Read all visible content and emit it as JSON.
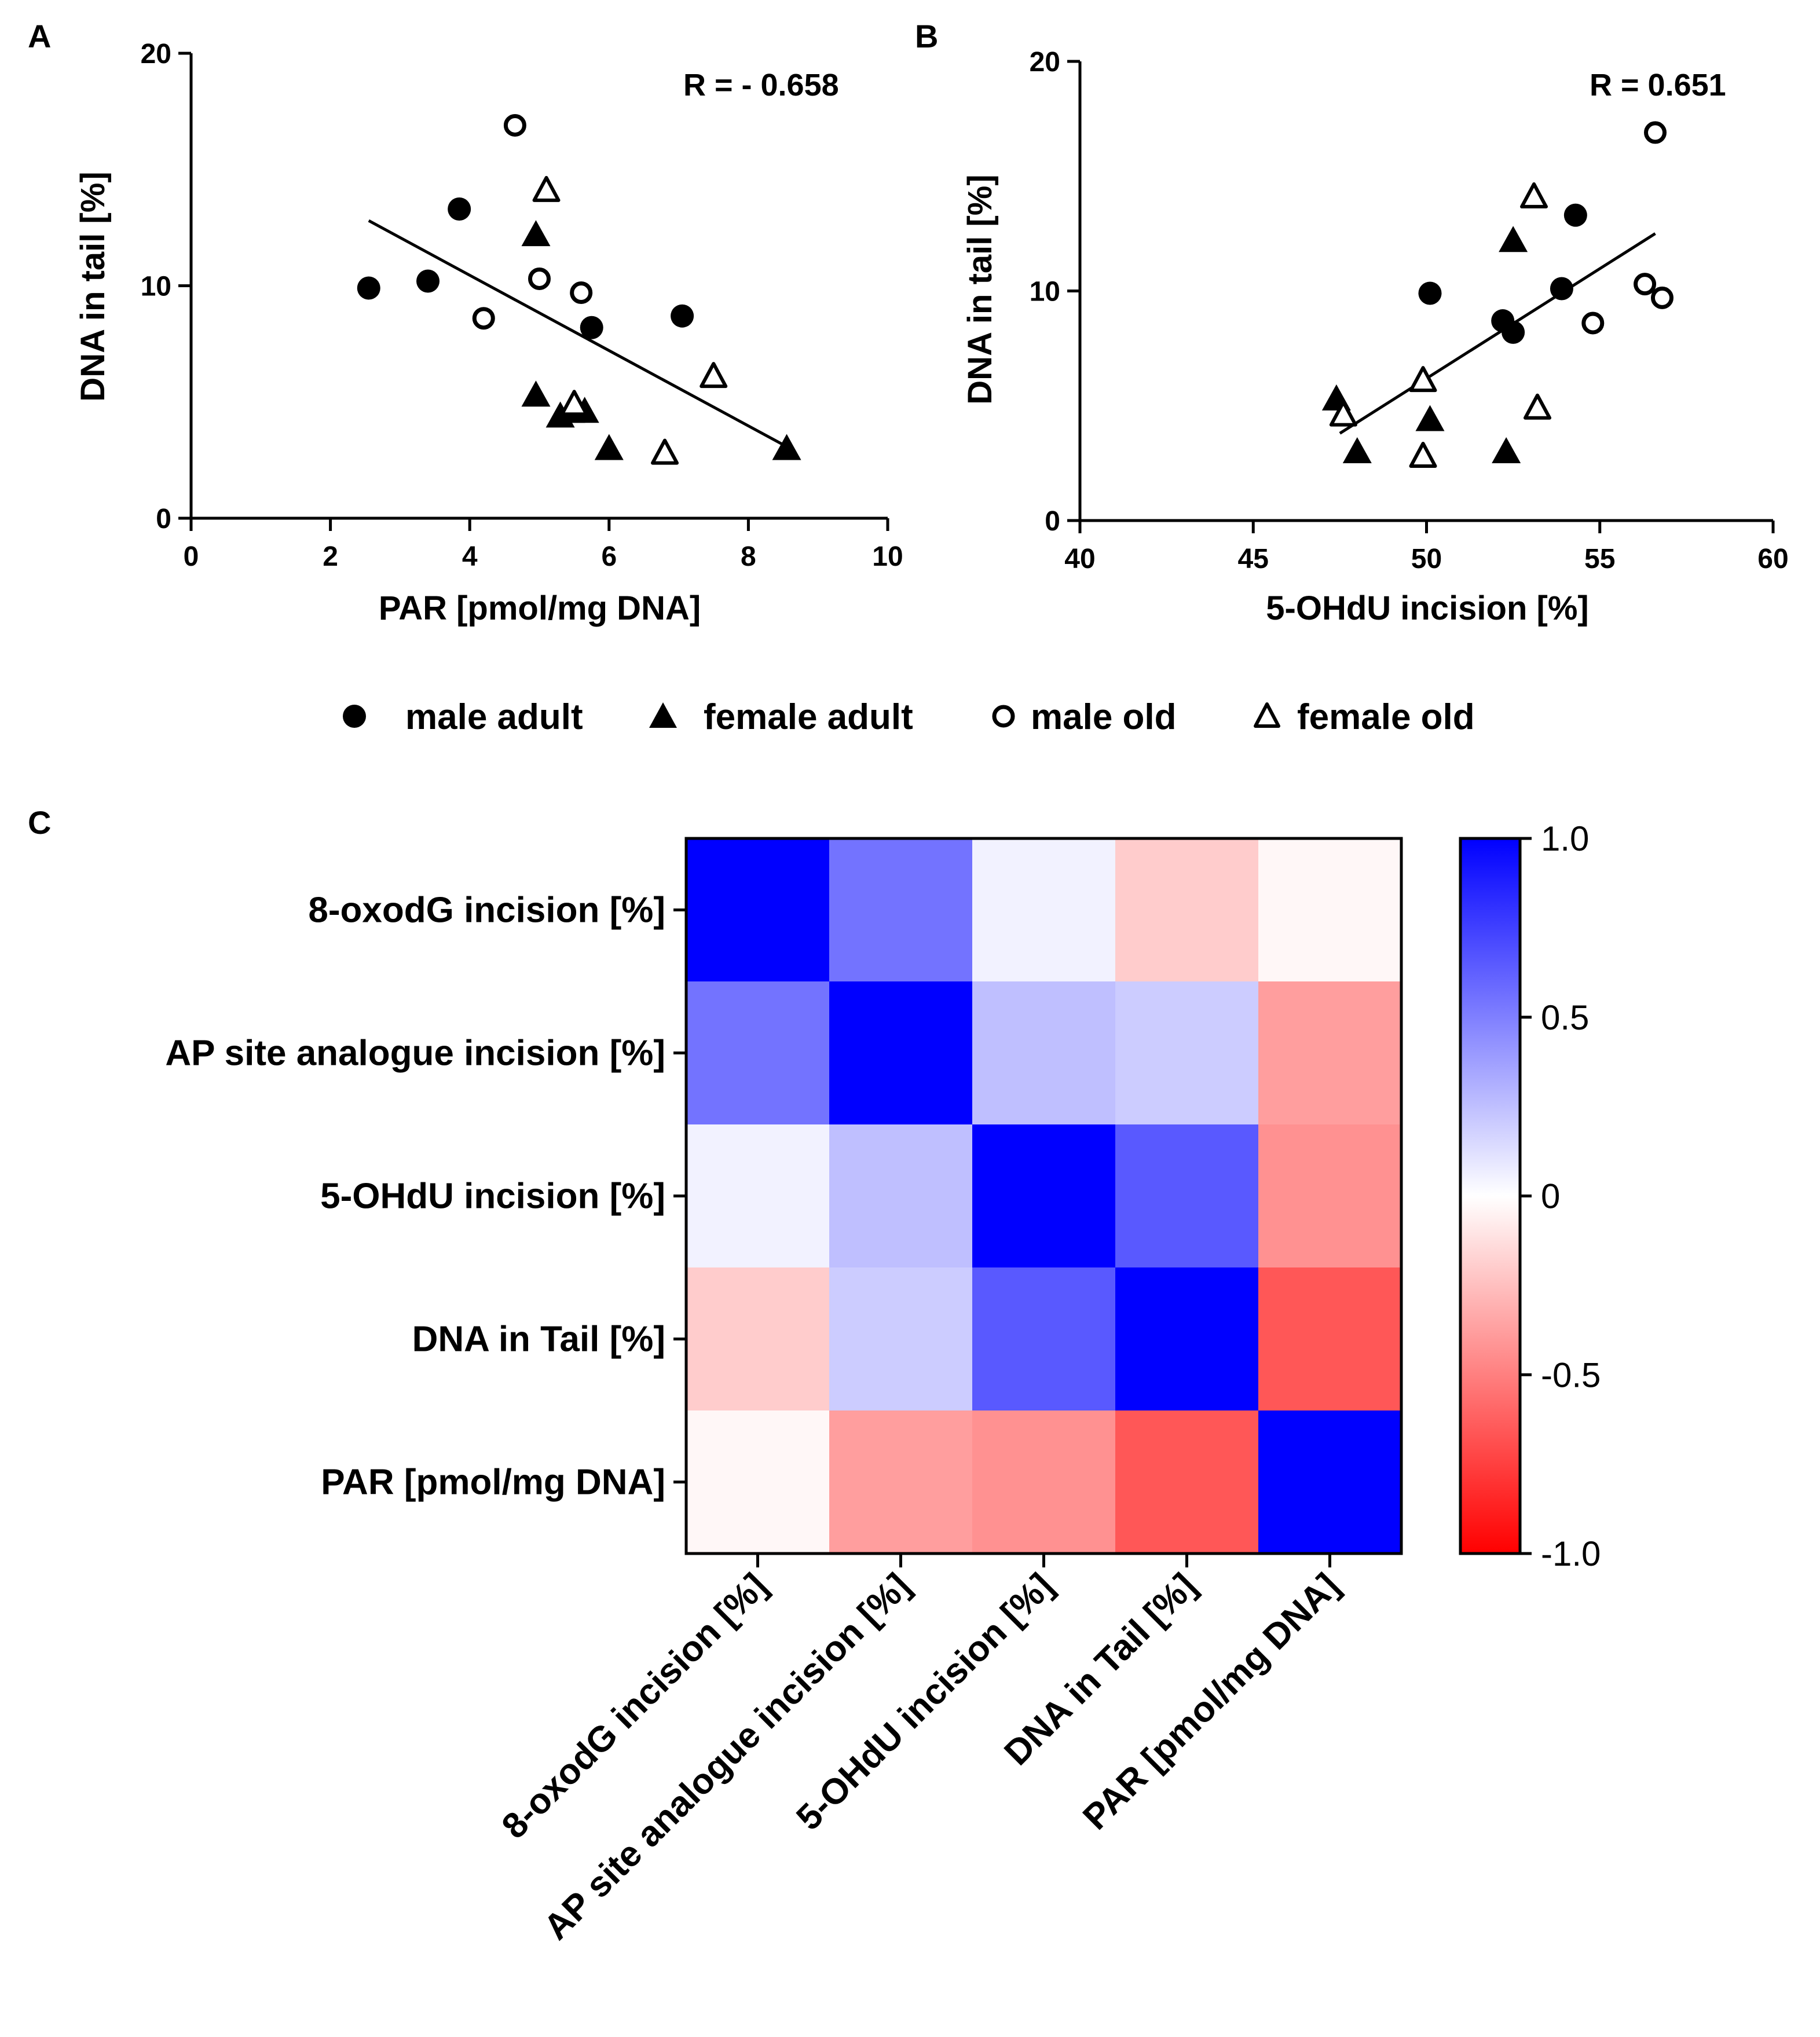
{
  "chart_data": [
    {
      "panel": "A",
      "type": "scatter",
      "xlabel": "PAR [pmol/mg DNA]",
      "ylabel": "DNA in tail [%]",
      "xlim": [
        0,
        10
      ],
      "ylim": [
        0,
        20
      ],
      "xticks": [
        0,
        2,
        4,
        6,
        8,
        10
      ],
      "yticks": [
        0,
        10,
        20
      ],
      "annotation": "R = - 0.658",
      "regression": {
        "x1": 2.55,
        "y1": 12.8,
        "x2": 8.6,
        "y2": 3.0
      },
      "series": [
        {
          "name": "male adult",
          "marker": "filled-circle",
          "points": [
            [
              2.55,
              9.9
            ],
            [
              3.4,
              10.2
            ],
            [
              3.85,
              13.3
            ],
            [
              5.75,
              8.2
            ],
            [
              7.05,
              8.7
            ]
          ]
        },
        {
          "name": "female adult",
          "marker": "filled-triangle",
          "points": [
            [
              4.95,
              12.2
            ],
            [
              4.95,
              5.3
            ],
            [
              5.3,
              4.4
            ],
            [
              5.45,
              4.6
            ],
            [
              5.65,
              4.6
            ],
            [
              6.0,
              3.0
            ],
            [
              8.55,
              3.0
            ]
          ]
        },
        {
          "name": "male old",
          "marker": "open-circle",
          "points": [
            [
              4.65,
              16.9
            ],
            [
              4.2,
              8.6
            ],
            [
              5.0,
              10.3
            ],
            [
              5.6,
              9.7
            ]
          ]
        },
        {
          "name": "female old",
          "marker": "open-triangle",
          "points": [
            [
              5.1,
              14.1
            ],
            [
              5.5,
              4.9
            ],
            [
              6.8,
              2.8
            ],
            [
              7.5,
              6.1
            ]
          ]
        }
      ]
    },
    {
      "panel": "B",
      "type": "scatter",
      "xlabel": "5-OHdU incision [%]",
      "ylabel": "DNA in tail [%]",
      "xlim": [
        40,
        60
      ],
      "ylim": [
        0,
        20
      ],
      "xticks": [
        40,
        45,
        50,
        55,
        60
      ],
      "yticks": [
        0,
        10,
        20
      ],
      "annotation": "R = 0.651",
      "regression": {
        "x1": 47.5,
        "y1": 3.8,
        "x2": 56.6,
        "y2": 12.5
      },
      "series": [
        {
          "name": "male adult",
          "marker": "filled-circle",
          "points": [
            [
              50.1,
              9.9
            ],
            [
              52.2,
              8.7
            ],
            [
              52.5,
              8.2
            ],
            [
              53.9,
              10.1
            ],
            [
              54.3,
              13.3
            ]
          ]
        },
        {
          "name": "female adult",
          "marker": "filled-triangle",
          "points": [
            [
              47.4,
              5.3
            ],
            [
              48.0,
              3.0
            ],
            [
              50.1,
              4.4
            ],
            [
              52.5,
              12.2
            ],
            [
              52.3,
              3.0
            ]
          ]
        },
        {
          "name": "male old",
          "marker": "open-circle",
          "points": [
            [
              54.8,
              8.6
            ],
            [
              56.3,
              10.3
            ],
            [
              56.6,
              16.9
            ],
            [
              56.8,
              9.7
            ]
          ]
        },
        {
          "name": "female old",
          "marker": "open-triangle",
          "points": [
            [
              47.6,
              4.6
            ],
            [
              49.9,
              6.1
            ],
            [
              49.9,
              2.8
            ],
            [
              53.1,
              14.1
            ],
            [
              53.2,
              4.9
            ]
          ]
        }
      ]
    },
    {
      "panel": "C",
      "type": "heatmap",
      "labels": [
        "8-oxodG incision [%]",
        "AP site analogue incision [%]",
        "5-OHdU incision [%]",
        "DNA in Tail [%]",
        "PAR [pmol/mg DNA]"
      ],
      "matrix": [
        [
          1.0,
          0.55,
          0.05,
          -0.2,
          -0.03
        ],
        [
          0.55,
          1.0,
          0.25,
          0.2,
          -0.38
        ],
        [
          0.05,
          0.25,
          1.0,
          0.65,
          -0.43
        ],
        [
          -0.2,
          0.2,
          0.65,
          1.0,
          -0.658
        ],
        [
          -0.03,
          -0.38,
          -0.43,
          -0.658,
          1.0
        ]
      ],
      "colorbar": {
        "min": -1.0,
        "max": 1.0,
        "ticks": [
          "1.0",
          "0.5",
          "0",
          "-0.5",
          "-1.0"
        ],
        "max_color": "#0000ff",
        "mid_color": "#ffffff",
        "min_color": "#ff0000"
      }
    }
  ],
  "panels": {
    "a": "A",
    "b": "B",
    "c": "C"
  },
  "legend": [
    {
      "label": "male adult",
      "marker": "filled-circle"
    },
    {
      "label": "female adult",
      "marker": "filled-triangle"
    },
    {
      "label": "male old",
      "marker": "open-circle"
    },
    {
      "label": "female old",
      "marker": "open-triangle"
    }
  ]
}
